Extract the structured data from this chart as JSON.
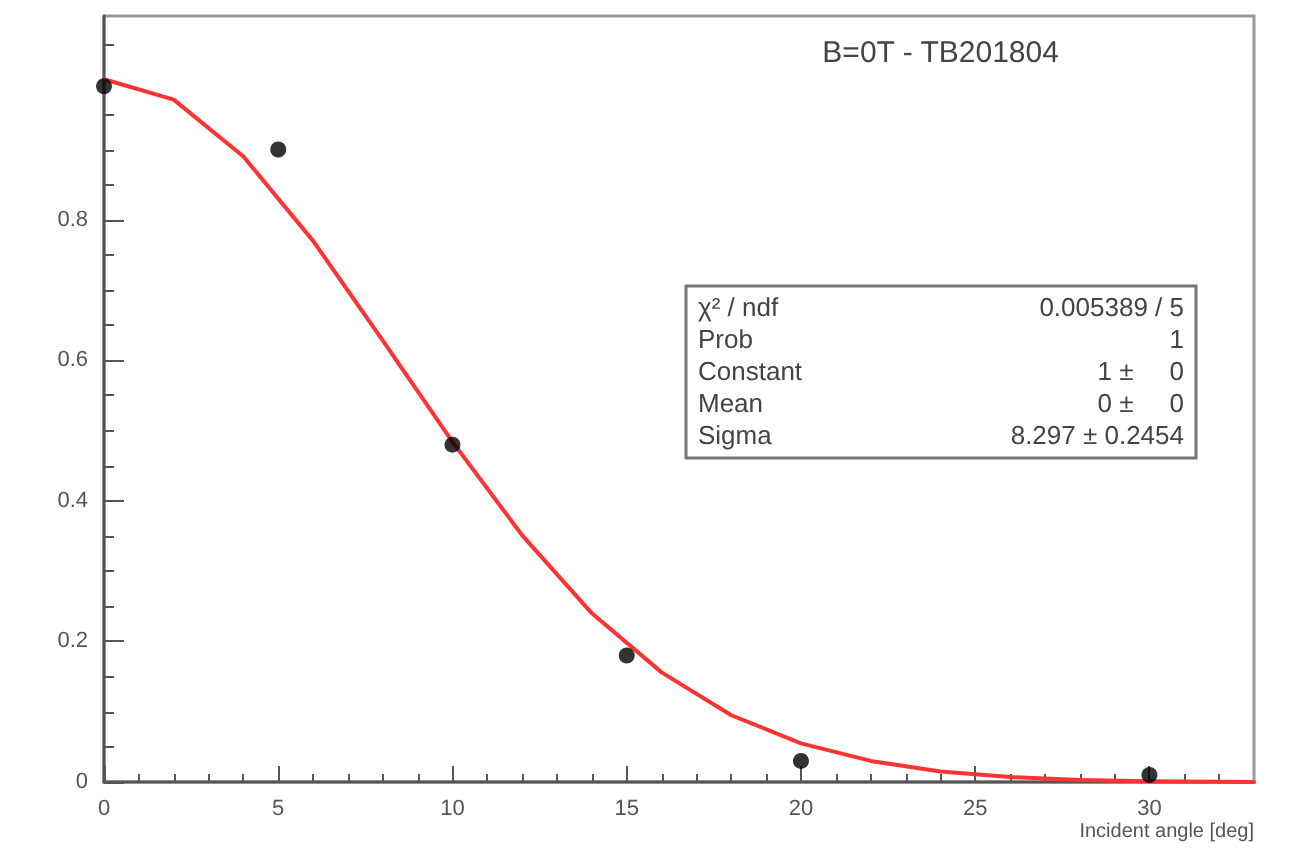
{
  "chart_data": {
    "type": "scatter",
    "title": "B=0T - TB201804",
    "xlabel": "Incident angle [deg]",
    "annotations": [
      "χ² / ndf",
      "0.005389 / 5",
      "Prob",
      "1",
      "Constant",
      "1 ±     0",
      "Mean",
      "0 ±     0",
      "Sigma",
      "8.297 ± 0.2454"
    ],
    "series": [
      {
        "color": "#000000",
        "marker": "circle",
        "x": [
          0,
          5,
          10,
          15,
          20,
          30
        ],
        "values": [
          0.99,
          0.9,
          0.48,
          0.18,
          0.03,
          0.01
        ]
      },
      {
        "type": "line",
        "color": "#ff3333",
        "marker": "none",
        "x": [
          0,
          2,
          4,
          6,
          8,
          10,
          12,
          14,
          16,
          18,
          20,
          22,
          24,
          26,
          28,
          30,
          33
        ],
        "values": [
          1,
          0.971,
          0.89,
          0.77,
          0.628,
          0.484,
          0.351,
          0.24,
          0.156,
          0.095,
          0.055,
          0.03,
          0.015,
          0.007,
          0.003,
          0.001,
          0
        ]
      }
    ],
    "xlim": [
      0,
      33
    ],
    "xticks": [
      0,
      5,
      10,
      15,
      20,
      25,
      30
    ],
    "ylim": [
      0,
      1.09
    ],
    "yticks": [
      0,
      0.2,
      0.4,
      0.6,
      0.8
    ],
    "grid": false
  }
}
